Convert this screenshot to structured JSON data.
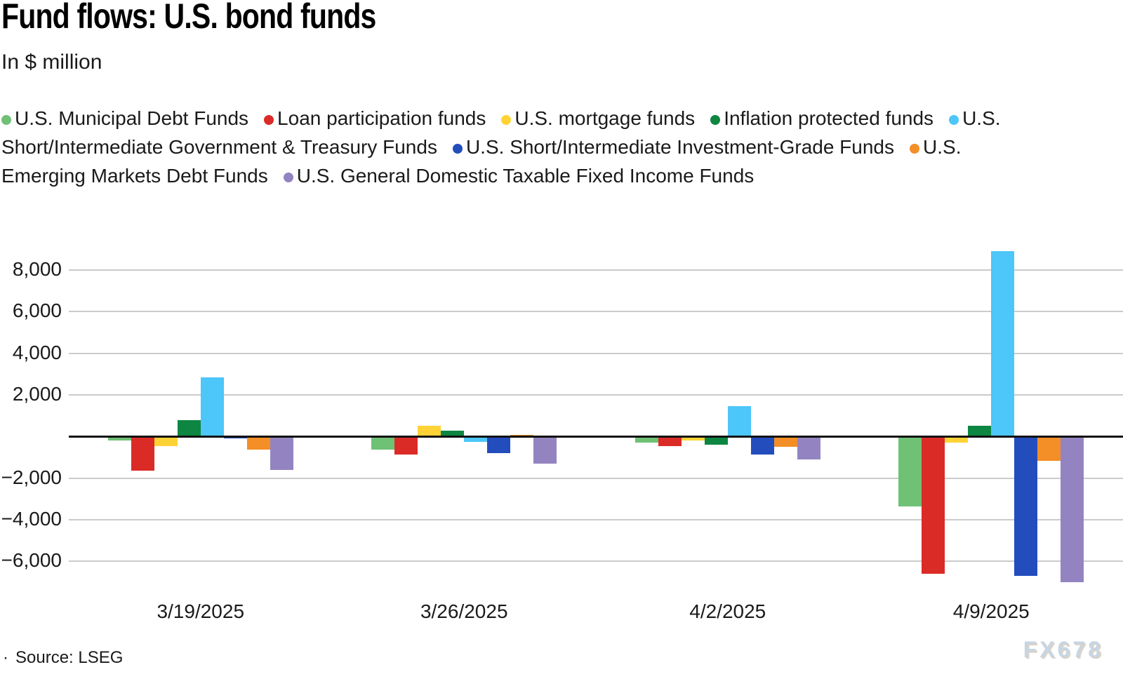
{
  "header": {
    "title": "Fund flows: U.S. bond funds",
    "subtitle": "In $ million"
  },
  "footer": {
    "bullet": "·",
    "source": "Source: LSEG",
    "watermark": "FX678"
  },
  "chart_data": {
    "type": "bar",
    "title": "Fund flows: U.S. bond funds",
    "unit_label": "In $ million",
    "categories": [
      "3/19/2025",
      "3/26/2025",
      "4/2/2025",
      "4/9/2025"
    ],
    "series": [
      {
        "name": "U.S. Municipal Debt Funds",
        "color": "#6EC175",
        "values": [
          -200,
          -620,
          -300,
          -3340
        ]
      },
      {
        "name": "Loan participation funds",
        "color": "#DB2B27",
        "values": [
          -1650,
          -850,
          -460,
          -6580
        ]
      },
      {
        "name": "U.S. mortgage funds",
        "color": "#FFD335",
        "values": [
          -450,
          530,
          -190,
          -300
        ]
      },
      {
        "name": "Inflation protected funds",
        "color": "#0D8642",
        "values": [
          780,
          290,
          -380,
          520
        ]
      },
      {
        "name": "U.S. Short/Intermediate Government & Treasury Funds",
        "color": "#4DC6F9",
        "values": [
          2850,
          -250,
          1480,
          8900
        ]
      },
      {
        "name": "U.S. Short/Intermediate Investment-Grade Funds",
        "color": "#234DBD",
        "values": [
          -80,
          -800,
          -860,
          -6680
        ]
      },
      {
        "name": "U.S. Emerging Markets Debt Funds",
        "color": "#F48E27",
        "values": [
          -630,
          90,
          -490,
          -1180
        ]
      },
      {
        "name": "U.S. General Domestic Taxable Fixed Income Funds",
        "color": "#9384C1",
        "values": [
          -1600,
          -1310,
          -1110,
          -6980
        ]
      }
    ],
    "y_ticks": [
      8000,
      6000,
      4000,
      2000,
      -2000,
      -4000,
      -6000
    ],
    "ylim": [
      -7670,
      9520
    ],
    "grid": true,
    "legend_position": "top",
    "zero_line": true
  }
}
